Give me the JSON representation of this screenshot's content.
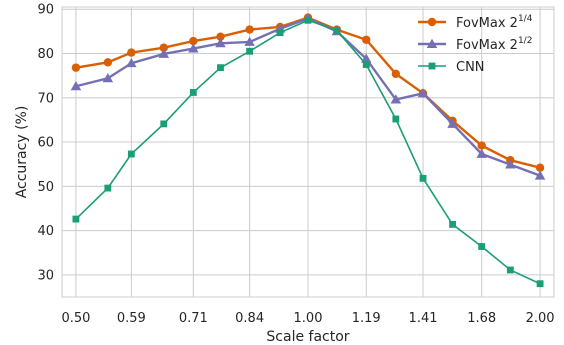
{
  "chart_data": {
    "type": "line",
    "title": "",
    "xlabel": "Scale factor",
    "ylabel": "Accuracy (%)",
    "x": [
      0.5,
      0.55,
      0.59,
      0.65,
      0.71,
      0.77,
      0.84,
      0.92,
      1.0,
      1.09,
      1.19,
      1.3,
      1.41,
      1.54,
      1.68,
      1.83,
      2.0
    ],
    "xtick_labels": [
      "0.50",
      "0.59",
      "0.71",
      "0.84",
      "1.00",
      "1.19",
      "1.41",
      "1.68",
      "2.00"
    ],
    "ylim": [
      25,
      90.5
    ],
    "yticks": [
      30,
      40,
      50,
      60,
      70,
      80,
      90
    ],
    "grid": true,
    "legend_position": "top-right",
    "series": [
      {
        "name": "FovMax 2",
        "name_sup": "1/4",
        "color": "#d95f02",
        "marker": "circle",
        "values": [
          76.8,
          78.0,
          80.2,
          81.3,
          82.8,
          83.8,
          85.4,
          86.0,
          88.1,
          85.4,
          83.1,
          75.4,
          71.0,
          64.8,
          59.2,
          55.9,
          54.2
        ]
      },
      {
        "name": "FovMax 2",
        "name_sup": "1/2",
        "color": "#7570b3",
        "marker": "triangle",
        "values": [
          72.6,
          74.4,
          77.8,
          79.9,
          81.1,
          82.3,
          82.6,
          85.6,
          87.9,
          85.0,
          78.8,
          69.6,
          71.0,
          64.1,
          57.3,
          54.9,
          52.4
        ]
      },
      {
        "name": "CNN",
        "name_sup": "",
        "color": "#1b9e77",
        "marker": "square",
        "values": [
          42.6,
          49.6,
          57.3,
          64.1,
          71.2,
          76.8,
          80.5,
          84.7,
          87.5,
          85.2,
          77.5,
          65.2,
          51.8,
          41.4,
          36.4,
          31.1,
          28.0
        ]
      }
    ]
  }
}
